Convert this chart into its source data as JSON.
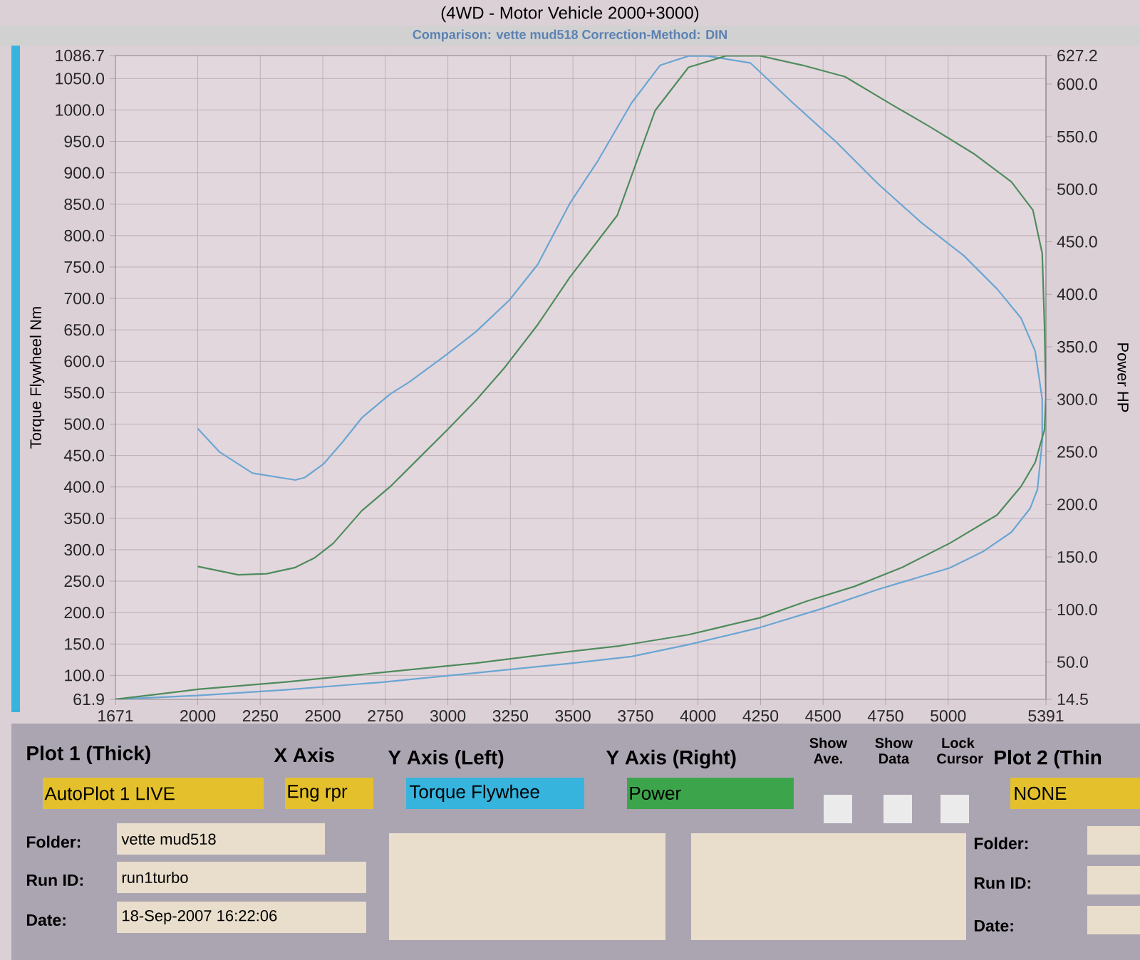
{
  "chart_data": {
    "type": "line",
    "title": "(4WD - Motor Vehicle 2000+3000)",
    "subtitle": "Comparison: vette mud518      Correction-Method: DIN",
    "ylabel": "Torque Flywheel Nm",
    "y2label": "Power HP",
    "xlim": [
      1671,
      5391
    ],
    "xticks": [
      1671,
      2000,
      2250,
      2500,
      2750,
      3000,
      3250,
      3500,
      3750,
      4000,
      4250,
      4500,
      4750,
      5000,
      5391
    ],
    "ylim": [
      61.9,
      1086.7
    ],
    "yticks": [
      61.9,
      {
        "value": 100,
        "label": "100.0"
      },
      {
        "value": 150,
        "label": "150.0"
      },
      {
        "value": 200,
        "label": "200.0"
      },
      {
        "value": 250,
        "label": "250.0"
      },
      {
        "value": 300,
        "label": "300.0"
      },
      {
        "value": 350,
        "label": "350.0"
      },
      {
        "value": 400,
        "label": "400.0"
      },
      {
        "value": 450,
        "label": "450.0"
      },
      {
        "value": 500,
        "label": "500.0"
      },
      {
        "value": 550,
        "label": "550.0"
      },
      {
        "value": 600,
        "label": "600.0"
      },
      {
        "value": 650,
        "label": "650.0"
      },
      {
        "value": 700,
        "label": "700.0"
      },
      {
        "value": 750,
        "label": "750.0"
      },
      {
        "value": 800,
        "label": "800.0"
      },
      {
        "value": 850,
        "label": "850.0"
      },
      {
        "value": 900,
        "label": "900.0"
      },
      {
        "value": 950,
        "label": "950.0"
      },
      {
        "value": 1000,
        "label": "1000.0"
      },
      {
        "value": 1050,
        "label": "1050.0"
      },
      1086.7
    ],
    "y2lim": [
      14.5,
      627.2
    ],
    "y2ticks": [
      14.5,
      {
        "value": 50,
        "label": "50.0"
      },
      {
        "value": 100,
        "label": "100.0"
      },
      {
        "value": 150,
        "label": "150.0"
      },
      {
        "value": 200,
        "label": "200.0"
      },
      {
        "value": 250,
        "label": "250.0"
      },
      {
        "value": 300,
        "label": "300.0"
      },
      {
        "value": 350,
        "label": "350.0"
      },
      {
        "value": 400,
        "label": "400.0"
      },
      {
        "value": 450,
        "label": "450.0"
      },
      {
        "value": 500,
        "label": "500.0"
      },
      {
        "value": 550,
        "label": "550.0"
      },
      {
        "value": 600,
        "label": "600.0"
      },
      627.2
    ],
    "grid": true,
    "series": [
      {
        "color": "#6aa6d2",
        "x": [
          2000,
          2086,
          2219,
          2390,
          2428,
          2504,
          2580,
          2656,
          2770,
          2846,
          2989,
          3112,
          3245,
          3359,
          3487,
          3601,
          3734,
          3848,
          3962,
          4038,
          4209,
          4380,
          4550,
          4721,
          4892,
          5063,
          5196,
          5291,
          5348,
          5376,
          5376,
          5357,
          5328,
          5253,
          5139,
          5006,
          4721,
          4493,
          4246,
          3962,
          3734,
          3487,
          3112,
          2732,
          2352,
          2000,
          1671
        ],
        "values": [
          493,
          456,
          422,
          411,
          415,
          437,
          472,
          510,
          548,
          567,
          609,
          647,
          697,
          754,
          851,
          920,
          1011,
          1071,
          1086,
          1086,
          1075,
          1011,
          950,
          882,
          821,
          768,
          715,
          669,
          616,
          540,
          472,
          396,
          366,
          328,
          297,
          271,
          237,
          206,
          176,
          149,
          130,
          119,
          104,
          89,
          77,
          68,
          61.9
        ]
      },
      {
        "color": "#4e8c5c",
        "axis": "y2",
        "x": [
          2000,
          2162,
          2276,
          2390,
          2466,
          2542,
          2656,
          2770,
          2884,
          2998,
          3112,
          3226,
          3359,
          3487,
          3677,
          3829,
          3962,
          4114,
          4246,
          4417,
          4588,
          4778,
          4930,
          5101,
          5253,
          5339,
          5376,
          5385,
          5391,
          5385,
          5348,
          5291,
          5196,
          5006,
          4816,
          4626,
          4436,
          4246,
          3962,
          3677,
          3487,
          3112,
          2732,
          2352,
          2000,
          1671
        ],
        "values": [
          141,
          133,
          134,
          140,
          149,
          163,
          194,
          217,
          244,
          271,
          299,
          330,
          371,
          416,
          475,
          575,
          616,
          627,
          627,
          618,
          607,
          580,
          559,
          534,
          507,
          480,
          439,
          371,
          303,
          271,
          240,
          217,
          190,
          163,
          140,
          122,
          108,
          92,
          76,
          65,
          60,
          49,
          40,
          31,
          24,
          14.5
        ]
      }
    ],
    "annotations": [
      "Plot 1 (Thick)",
      "X Axis",
      "Y Axis (Left)",
      "Y Axis (Right)",
      "Show Ave.",
      "Show Data",
      "Lock Cursor",
      "Plot 2 (Thin",
      "AutoPlot 1 LIVE",
      "Eng rpr",
      "Torque Flywhee",
      "Power",
      "NONE",
      "Folder:",
      "vette mud518",
      "Run ID:",
      "run1turbo",
      "Date:",
      "18-Sep-2007  16:22:06",
      "Folder:",
      "Run ID:",
      "Date:"
    ]
  }
}
